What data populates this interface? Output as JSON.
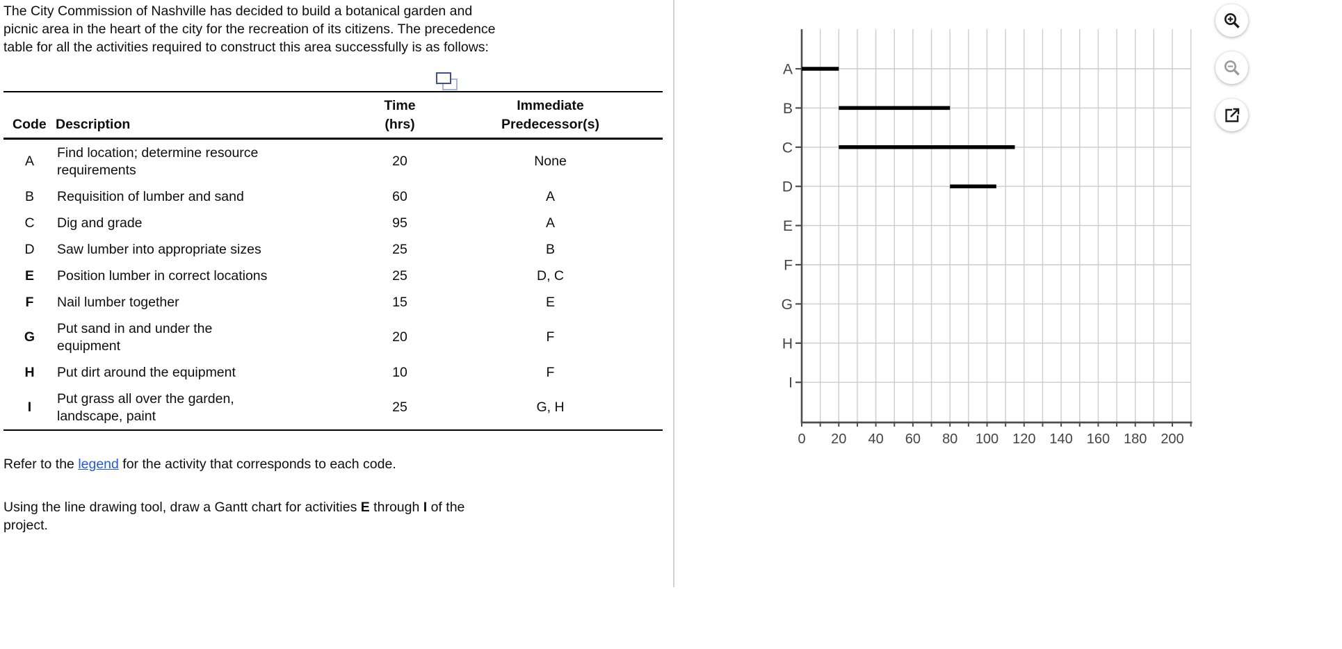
{
  "intro": "The City Commission of Nashville has decided to build a botanical garden and\npicnic area in the heart of the city for the recreation of its citizens. The precedence\ntable for all the activities required to construct this area successfully is as follows:",
  "table": {
    "headers": {
      "time_line1": "Time",
      "pred_line1": "Immediate",
      "code": "Code",
      "description": "Description",
      "time_line2": "(hrs)",
      "pred_line2": "Predecessor(s)"
    },
    "rows": [
      {
        "code": "A",
        "description": "Find location; determine resource\nrequirements",
        "time": "20",
        "predecessors": "None",
        "bold_code": false
      },
      {
        "code": "B",
        "description": "Requisition of lumber and sand",
        "time": "60",
        "predecessors": "A",
        "bold_code": false
      },
      {
        "code": "C",
        "description": "Dig and grade",
        "time": "95",
        "predecessors": "A",
        "bold_code": false
      },
      {
        "code": "D",
        "description": "Saw lumber into appropriate sizes",
        "time": "25",
        "predecessors": "B",
        "bold_code": false
      },
      {
        "code": "E",
        "description": "Position lumber in correct locations",
        "time": "25",
        "predecessors": "D, C",
        "bold_code": true
      },
      {
        "code": "F",
        "description": "Nail lumber together",
        "time": "15",
        "predecessors": "E",
        "bold_code": true
      },
      {
        "code": "G",
        "description": "Put sand in and under the\nequipment",
        "time": "20",
        "predecessors": "F",
        "bold_code": true
      },
      {
        "code": "H",
        "description": "Put dirt around the equipment",
        "time": "10",
        "predecessors": "F",
        "bold_code": true
      },
      {
        "code": "I",
        "description": "Put grass all over the garden,\nlandscape, paint",
        "time": "25",
        "predecessors": "G, H",
        "bold_code": true
      }
    ]
  },
  "refer": {
    "pre": "Refer to the ",
    "link": "legend",
    "post": " for the activity that corresponds to each code."
  },
  "instruction": {
    "pre": "Using the line drawing tool, draw a Gantt chart for activities ",
    "bold_start": "E",
    "middle": " through ",
    "bold_end": "I",
    "post": " of the",
    "line2": "project."
  },
  "controls": {
    "zoom_in": "zoom-in",
    "zoom_out": "zoom-out",
    "open_popup": "open-in-new"
  },
  "chart_data": {
    "type": "bar",
    "subtype": "gantt",
    "title": "",
    "xlabel": "",
    "ylabel": "",
    "x_axis": {
      "min": 0,
      "max": 210,
      "tick_step": 20,
      "minor_step": 10,
      "tick_labels": [
        "0",
        "20",
        "40",
        "60",
        "80",
        "100",
        "120",
        "140",
        "160",
        "180",
        "200"
      ]
    },
    "y_axis": {
      "categories": [
        "A",
        "B",
        "C",
        "D",
        "E",
        "F",
        "G",
        "H",
        "I"
      ]
    },
    "bars": [
      {
        "activity": "A",
        "start": 0,
        "end": 20
      },
      {
        "activity": "B",
        "start": 20,
        "end": 80
      },
      {
        "activity": "C",
        "start": 20,
        "end": 115
      },
      {
        "activity": "D",
        "start": 80,
        "end": 105
      }
    ],
    "grid": true,
    "legend": "none",
    "colors": {
      "bar": "#000000",
      "grid": "#cccccc",
      "axis": "#4d4d4d",
      "labels": "#444444"
    }
  }
}
